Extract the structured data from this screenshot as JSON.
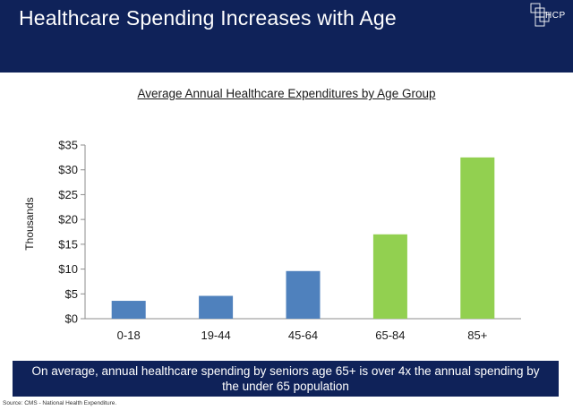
{
  "header": {
    "title": "Healthcare Spending Increases with Age",
    "logo_text": "HCP",
    "background": "#0f2259"
  },
  "chart_data": {
    "type": "bar",
    "title": "Average Annual Healthcare Expenditures by Age Group",
    "xlabel": "",
    "ylabel": "Thousands",
    "categories": [
      "0-18",
      "19-44",
      "45-64",
      "65-84",
      "85+"
    ],
    "values": [
      3.6,
      4.6,
      9.6,
      17.0,
      32.5
    ],
    "bar_colors": [
      "#4f81bd",
      "#4f81bd",
      "#4f81bd",
      "#92d050",
      "#92d050"
    ],
    "ylim": [
      0,
      35
    ],
    "yticks": [
      0,
      5,
      10,
      15,
      20,
      25,
      30,
      35
    ],
    "ytick_labels": [
      "$0",
      "$5",
      "$10",
      "$15",
      "$20",
      "$25",
      "$30",
      "$35"
    ],
    "grid": false,
    "legend": "none"
  },
  "callout": {
    "text": "On average, annual healthcare spending by seniors age 65+ is over 4x the annual spending by the under 65 population"
  },
  "source": "Source: CMS - National Health Expenditure."
}
